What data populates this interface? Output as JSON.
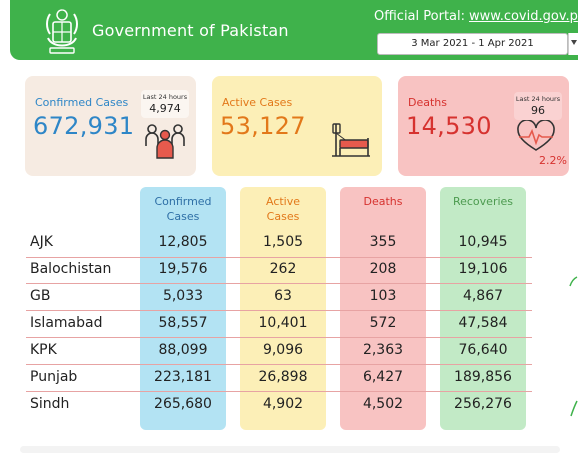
{
  "header": {
    "gov_title": "Government of Pakistan",
    "portal_label": "Official Portal:",
    "portal_url": "www.covid.gov.p",
    "date_range": "3 Mar 2021 - 1 Apr 2021"
  },
  "summary": {
    "confirmed": {
      "label": "Confirmed Cases",
      "value": "672,931",
      "last24_label": "Last 24 hours",
      "last24_value": "4,974",
      "icon": "people-icon"
    },
    "active": {
      "label": "Active Cases",
      "value": "53,127",
      "icon": "hospital-bed-icon"
    },
    "deaths": {
      "label": "Deaths",
      "value": "14,530",
      "last24_label": "Last 24 hours",
      "last24_value": "96",
      "percent": "2.2%",
      "icon": "heartbeat-icon"
    }
  },
  "table": {
    "headers": {
      "confirmed": [
        "Confirmed",
        "Cases"
      ],
      "active": [
        "Active",
        "Cases"
      ],
      "deaths": [
        "Deaths"
      ],
      "recoveries": [
        "Recoveries"
      ]
    },
    "rows": [
      {
        "region": "AJK",
        "confirmed": "12,805",
        "active": "1,505",
        "deaths": "355",
        "recoveries": "10,945"
      },
      {
        "region": "Balochistan",
        "confirmed": "19,576",
        "active": "262",
        "deaths": "208",
        "recoveries": "19,106"
      },
      {
        "region": "GB",
        "confirmed": "5,033",
        "active": "63",
        "deaths": "103",
        "recoveries": "4,867"
      },
      {
        "region": "Islamabad",
        "confirmed": "58,557",
        "active": "10,401",
        "deaths": "572",
        "recoveries": "47,584"
      },
      {
        "region": "KPK",
        "confirmed": "88,099",
        "active": "9,096",
        "deaths": "2,363",
        "recoveries": "76,640"
      },
      {
        "region": "Punjab",
        "confirmed": "223,181",
        "active": "26,898",
        "deaths": "6,427",
        "recoveries": "189,856"
      },
      {
        "region": "Sindh",
        "confirmed": "265,680",
        "active": "4,902",
        "deaths": "4,502",
        "recoveries": "256,276"
      }
    ]
  },
  "colors": {
    "header_green": "#3fb24b",
    "confirmed_blue": "#2e86c7",
    "active_orange": "#e2781a",
    "deaths_red": "#d6322f",
    "recoveries_green": "#4c9a4f"
  }
}
